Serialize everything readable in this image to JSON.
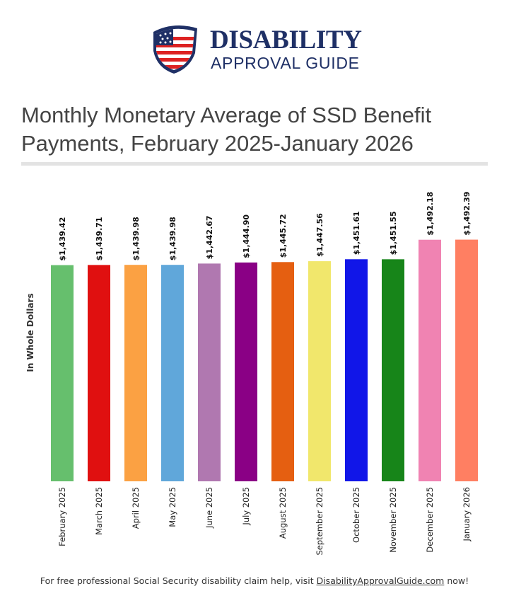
{
  "logo": {
    "line1": "DISABILITY",
    "line2": "APPROVAL GUIDE"
  },
  "chart_data": {
    "type": "bar",
    "title": "Monthly Monetary Average of SSD Benefit Payments, February 2025-January 2026",
    "y_label": "In Whole Dollars",
    "categories": [
      "February 2025",
      "March 2025",
      "April 2025",
      "May 2025",
      "June 2025",
      "July 2025",
      "August 2025",
      "September 2025",
      "October 2025",
      "November 2025",
      "December 2025",
      "January 2026"
    ],
    "values": [
      1439.42,
      1439.71,
      1439.98,
      1439.98,
      1442.67,
      1444.9,
      1445.72,
      1447.56,
      1451.61,
      1451.55,
      1492.18,
      1492.39
    ],
    "value_labels": [
      "$1,439.42",
      "$1,439.71",
      "$1,439.98",
      "$1,439.98",
      "$1,442.67",
      "$1,444.90",
      "$1,445.72",
      "$1,447.56",
      "$1,451.61",
      "$1,451.55",
      "$1,492.18",
      "$1,492.39"
    ],
    "colors": [
      "#66bf6d",
      "#e01010",
      "#fba143",
      "#60a7da",
      "#b078b0",
      "#8a0085",
      "#e55f11",
      "#f1e76c",
      "#1116e8",
      "#178519",
      "#f083b2",
      "#ff7f62"
    ],
    "ylim": [
      990,
      1505
    ]
  },
  "footer": {
    "text": "For free professional Social Security disability claim help, visit",
    "link": "DisabilityApprovalGuide.com",
    "after": "now!"
  }
}
